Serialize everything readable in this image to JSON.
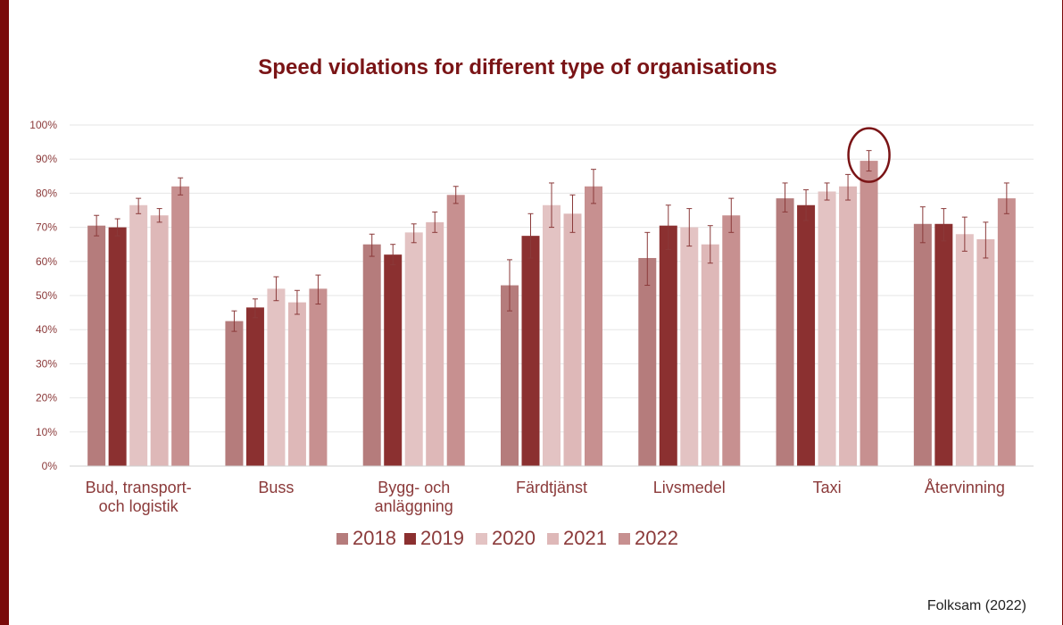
{
  "title": "Speed violations for different type of organisations",
  "source": "Folksam (2022)",
  "colors": {
    "frame": "#7a0a0a",
    "title": "#7a1416",
    "axis_text": "#8b3a3a",
    "grid": "#e6e6e6",
    "highlight_circle": "#7a1416"
  },
  "chart_data": {
    "type": "bar",
    "title": "",
    "xlabel": "",
    "ylabel": "",
    "ylim": [
      0,
      100
    ],
    "y_ticks": [
      "0%",
      "10%",
      "20%",
      "30%",
      "40%",
      "50%",
      "60%",
      "70%",
      "80%",
      "90%",
      "100%"
    ],
    "y_tick_values": [
      0,
      10,
      20,
      30,
      40,
      50,
      60,
      70,
      80,
      90,
      100
    ],
    "grid": true,
    "legend_position": "bottom",
    "categories": [
      "Bud, transport-\noch logistik",
      "Buss",
      "Bygg- och\nanläggning",
      "Färdtjänst",
      "Livsmedel",
      "Taxi",
      "Återvinning"
    ],
    "series": [
      {
        "name": "2018",
        "color": "#b57c7c",
        "values": [
          70.5,
          42.5,
          65,
          53,
          61,
          78.5,
          71
        ],
        "err": [
          [
            67.5,
            73.5
          ],
          [
            39.5,
            45.5
          ],
          [
            61.5,
            68
          ],
          [
            45.5,
            60.5
          ],
          [
            53,
            68.5
          ],
          [
            74.5,
            83
          ],
          [
            65.5,
            76
          ]
        ]
      },
      {
        "name": "2019",
        "color": "#8b3030",
        "values": [
          70,
          46.5,
          62,
          67.5,
          70.5,
          76.5,
          71
        ],
        "err": [
          [
            67.5,
            72.5
          ],
          [
            43.5,
            49
          ],
          [
            59,
            65
          ],
          [
            61,
            74
          ],
          [
            63.5,
            76.5
          ],
          [
            72,
            81
          ],
          [
            66,
            75.5
          ]
        ]
      },
      {
        "name": "2020",
        "color": "#e3c3c3",
        "values": [
          76.5,
          52,
          68.5,
          76.5,
          70,
          80.5,
          68
        ],
        "err": [
          [
            74,
            78.5
          ],
          [
            48.5,
            55.5
          ],
          [
            65.5,
            71
          ],
          [
            70,
            83
          ],
          [
            64.5,
            75.5
          ],
          [
            78,
            83
          ],
          [
            63,
            73
          ]
        ]
      },
      {
        "name": "2021",
        "color": "#deb8b8",
        "values": [
          73.5,
          48,
          71.5,
          74,
          65,
          82,
          66.5
        ],
        "err": [
          [
            71.5,
            75.5
          ],
          [
            44.5,
            51.5
          ],
          [
            68.5,
            74.5
          ],
          [
            68.5,
            79.5
          ],
          [
            59.5,
            70.5
          ],
          [
            78,
            85.5
          ],
          [
            61,
            71.5
          ]
        ]
      },
      {
        "name": "2022",
        "color": "#c79090",
        "values": [
          82,
          52,
          79.5,
          82,
          73.5,
          89.5,
          78.5
        ],
        "err": [
          [
            79.5,
            84.5
          ],
          [
            47.5,
            56
          ],
          [
            77,
            82
          ],
          [
            77,
            87
          ],
          [
            68.5,
            78.5
          ],
          [
            86.5,
            92.5
          ],
          [
            74,
            83
          ]
        ]
      }
    ],
    "highlight": {
      "category": "Taxi",
      "series": "2022"
    }
  }
}
